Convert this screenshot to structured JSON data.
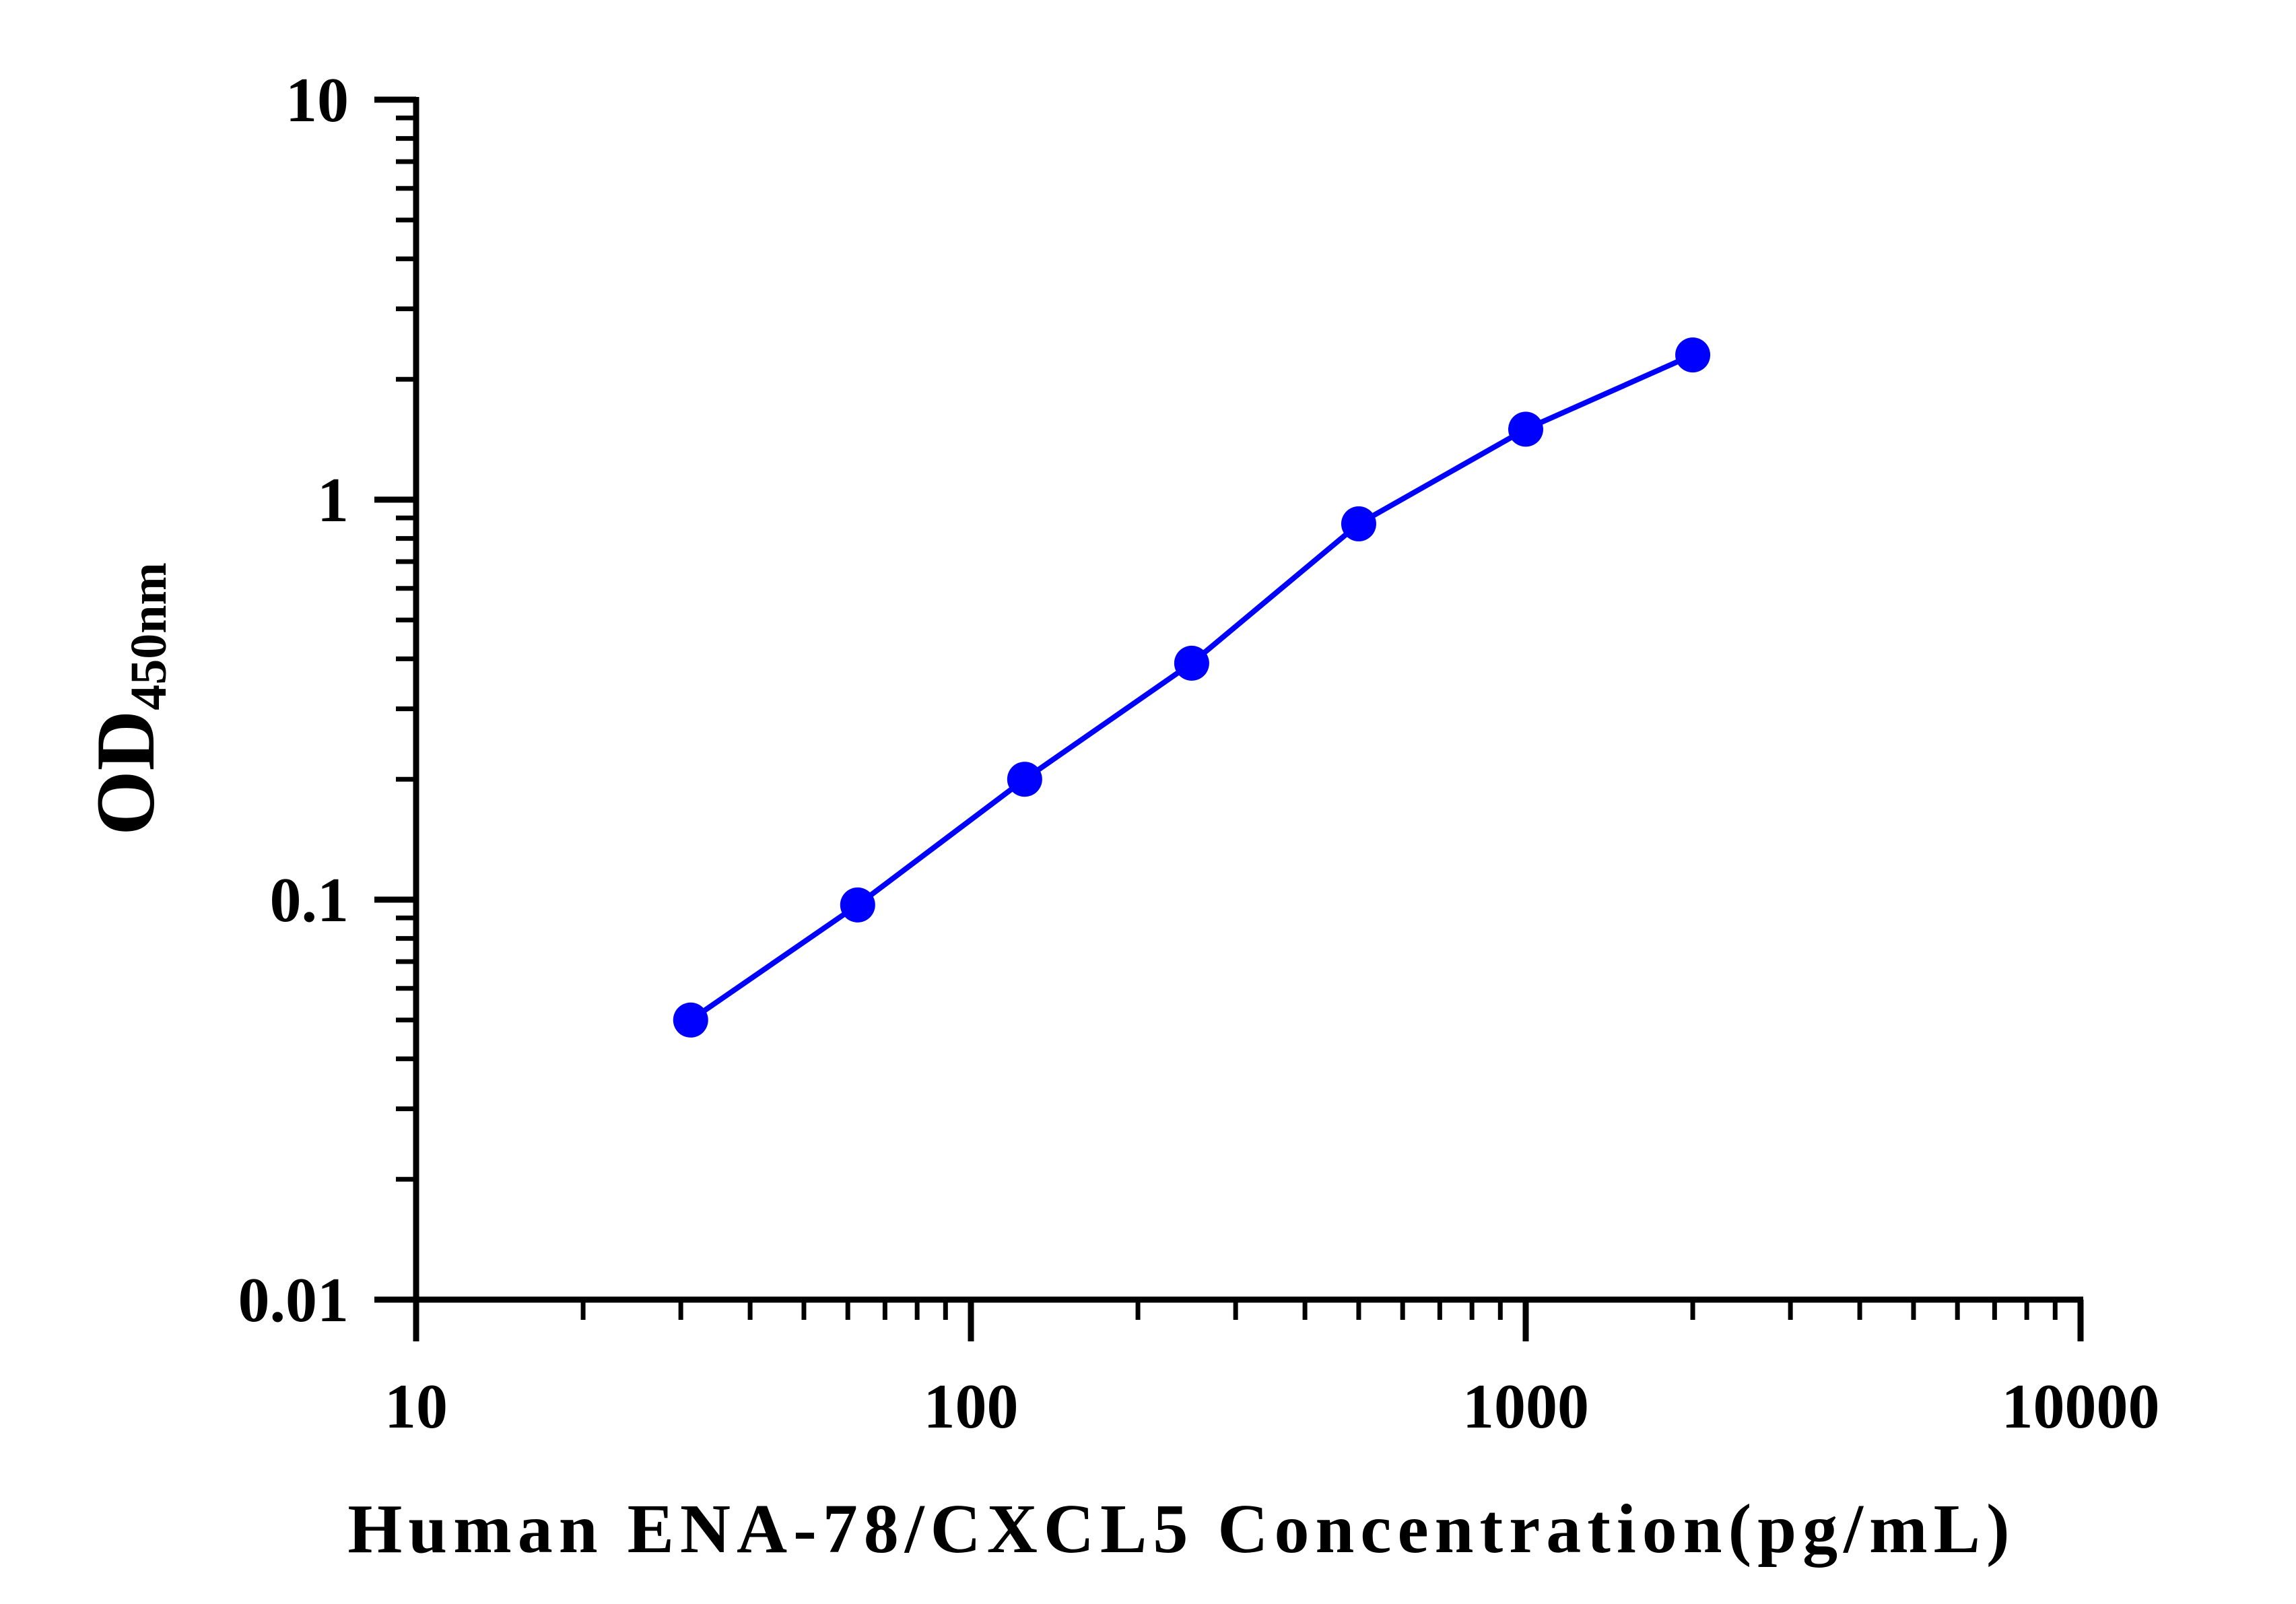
{
  "chart_data": {
    "type": "line",
    "title": "",
    "xlabel": "Human ENA-78/CXCL5 Concentration(pg/mL)",
    "ylabel": {
      "main": "OD",
      "subscript": "450nm"
    },
    "xscale": "log",
    "yscale": "log",
    "xlim": [
      10,
      10000
    ],
    "ylim": [
      0.01,
      10
    ],
    "x_tick_labels": [
      "10",
      "100",
      "1000",
      "10000"
    ],
    "y_tick_labels": [
      "0.01",
      "0.1",
      "1",
      "10"
    ],
    "grid": false,
    "legend": "none",
    "series": [
      {
        "color": "#0000ff",
        "marker": "circle",
        "x": [
          31.25,
          62.5,
          125,
          250,
          500,
          1000,
          2000
        ],
        "y": [
          0.05,
          0.097,
          0.2,
          0.39,
          0.87,
          1.5,
          2.3
        ]
      }
    ]
  }
}
